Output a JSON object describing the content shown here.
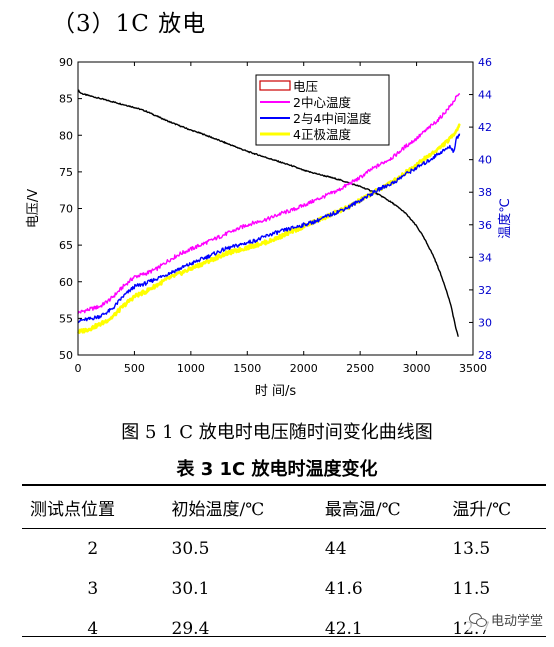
{
  "section_heading": "（3）1C 放电",
  "figure_caption": "图 5 1 C 放电时电压随时间变化曲线图",
  "table_title": "表 3    1C 放电时温度变化",
  "table": {
    "headers": [
      "测试点位置",
      "初始温度/℃",
      "最高温/℃",
      "温升/℃"
    ],
    "rows": [
      [
        "2",
        "30.5",
        "44",
        "13.5"
      ],
      [
        "3",
        "30.1",
        "41.6",
        "11.5"
      ],
      [
        "4",
        "29.4",
        "42.1",
        "12.7"
      ]
    ]
  },
  "watermark": "电动学堂",
  "chart_data": {
    "type": "line",
    "xlabel": "时 间/s",
    "ylabel": "电压/V",
    "y2label": "温度℃",
    "xlim": [
      0,
      3500
    ],
    "ylim": [
      50,
      90
    ],
    "y2lim": [
      28,
      46
    ],
    "xticks": [
      "0",
      "500",
      "1000",
      "1500",
      "2000",
      "2500",
      "3000",
      "3500"
    ],
    "yticks": [
      "50",
      "55",
      "60",
      "65",
      "70",
      "75",
      "80",
      "85",
      "90"
    ],
    "y2ticks": [
      "28",
      "30",
      "32",
      "34",
      "36",
      "38",
      "40",
      "42",
      "44",
      "46"
    ],
    "legend_position": "top-center",
    "series": [
      {
        "name": "电压",
        "axis": "left",
        "color": "#000000",
        "x": [
          0,
          20,
          50,
          100,
          200,
          300,
          400,
          500,
          600,
          700,
          800,
          900,
          1000,
          1100,
          1200,
          1300,
          1400,
          1500,
          1600,
          1700,
          1800,
          1900,
          2000,
          2100,
          2200,
          2300,
          2400,
          2500,
          2600,
          2700,
          2800,
          2900,
          3000,
          3050,
          3100,
          3150,
          3200,
          3250,
          3300,
          3330,
          3350,
          3370
        ],
        "values": [
          86.2,
          85.8,
          85.6,
          85.4,
          85.0,
          84.6,
          84.2,
          83.8,
          83.3,
          82.6,
          81.9,
          81.3,
          80.7,
          80.2,
          79.6,
          79.0,
          78.4,
          77.8,
          77.3,
          76.8,
          76.3,
          75.8,
          75.2,
          74.8,
          74.4,
          74.0,
          73.5,
          73.0,
          72.4,
          71.6,
          70.6,
          69.4,
          67.6,
          66.4,
          65.0,
          63.5,
          61.6,
          59.5,
          57.0,
          55.0,
          53.5,
          52.5
        ]
      },
      {
        "name": "2中心温度",
        "axis": "right",
        "color": "#ff00ff",
        "x": [
          0,
          100,
          200,
          300,
          400,
          500,
          600,
          700,
          800,
          900,
          1000,
          1100,
          1200,
          1300,
          1400,
          1500,
          1600,
          1700,
          1800,
          1900,
          2000,
          2100,
          2200,
          2300,
          2400,
          2500,
          2600,
          2700,
          2800,
          2900,
          3000,
          3100,
          3200,
          3300,
          3350,
          3380
        ],
        "values": [
          30.6,
          30.8,
          31.0,
          31.5,
          32.2,
          32.8,
          33.0,
          33.3,
          33.8,
          34.2,
          34.5,
          34.8,
          35.1,
          35.4,
          35.7,
          36.0,
          36.2,
          36.4,
          36.7,
          36.9,
          37.2,
          37.5,
          37.8,
          38.1,
          38.5,
          38.9,
          39.4,
          39.8,
          40.2,
          40.8,
          41.3,
          41.9,
          42.5,
          43.3,
          43.8,
          44.0
        ]
      },
      {
        "name": "2与4中间温度",
        "axis": "right",
        "color": "#0000ff",
        "x": [
          0,
          100,
          200,
          300,
          400,
          500,
          600,
          700,
          800,
          900,
          1000,
          1100,
          1200,
          1300,
          1400,
          1500,
          1600,
          1700,
          1800,
          1900,
          2000,
          2100,
          2200,
          2300,
          2400,
          2500,
          2600,
          2700,
          2800,
          2900,
          3000,
          3100,
          3200,
          3250,
          3300,
          3330,
          3350,
          3380
        ],
        "values": [
          30.1,
          30.2,
          30.4,
          30.8,
          31.6,
          32.2,
          32.4,
          32.7,
          33.0,
          33.3,
          33.6,
          33.9,
          34.2,
          34.5,
          34.7,
          34.9,
          35.1,
          35.4,
          35.6,
          35.8,
          36.0,
          36.2,
          36.5,
          36.8,
          37.1,
          37.5,
          37.9,
          38.3,
          38.6,
          39.1,
          39.5,
          39.9,
          40.4,
          40.6,
          40.8,
          40.5,
          41.2,
          41.6
        ]
      },
      {
        "name": "4正极温度",
        "axis": "right",
        "color": "#ffff00",
        "x": [
          0,
          100,
          200,
          300,
          400,
          500,
          600,
          700,
          800,
          900,
          1000,
          1100,
          1200,
          1300,
          1400,
          1500,
          1600,
          1700,
          1800,
          1900,
          2000,
          2100,
          2200,
          2300,
          2400,
          2500,
          2600,
          2700,
          2800,
          2900,
          3000,
          3100,
          3200,
          3300,
          3350,
          3380
        ],
        "values": [
          29.4,
          29.6,
          29.9,
          30.3,
          31.0,
          31.6,
          31.9,
          32.3,
          32.7,
          33.0,
          33.3,
          33.6,
          33.9,
          34.2,
          34.4,
          34.6,
          34.8,
          35.0,
          35.3,
          35.6,
          35.9,
          36.2,
          36.5,
          36.8,
          37.1,
          37.5,
          37.9,
          38.3,
          38.7,
          39.2,
          39.7,
          40.2,
          40.7,
          41.3,
          41.8,
          42.1
        ]
      }
    ]
  }
}
